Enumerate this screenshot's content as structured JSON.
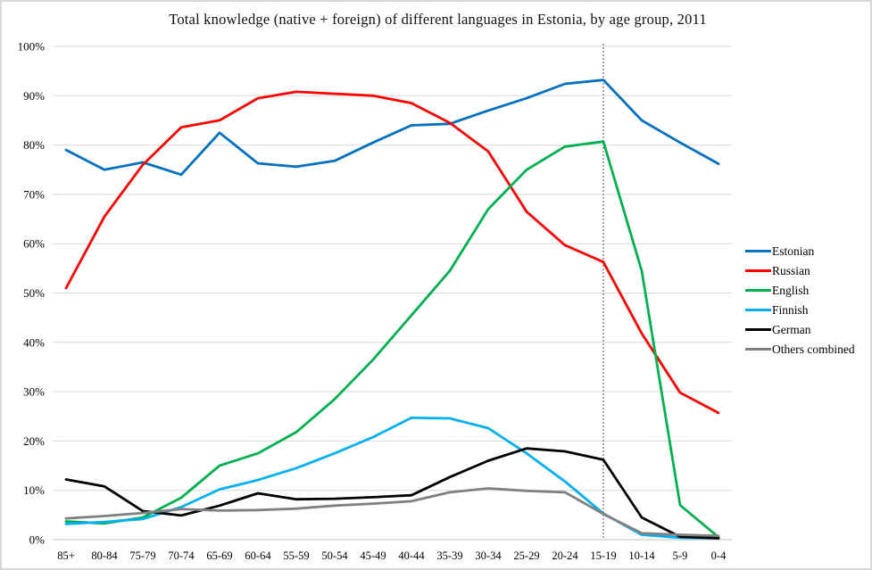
{
  "chart_data": {
    "type": "line",
    "title": "Total knowledge (native + foreign) of different languages in Estonia, by age group, 2011",
    "categories": [
      "85+",
      "80-84",
      "75-79",
      "70-74",
      "65-69",
      "60-64",
      "55-59",
      "50-54",
      "45-49",
      "40-44",
      "35-39",
      "30-34",
      "25-29",
      "20-24",
      "15-19",
      "10-14",
      "5-9",
      "0-4"
    ],
    "y_ticks": [
      "100%",
      "90%",
      "80%",
      "70%",
      "60%",
      "50%",
      "40%",
      "30%",
      "20%",
      "10%",
      "0%"
    ],
    "ylim": [
      0,
      100
    ],
    "grid": true,
    "legend_position": "right",
    "reference_line": {
      "category": "15-19",
      "style": "dashed",
      "color": "#4d4d4d"
    },
    "colors": {
      "estonian": "#0070C0",
      "russian": "#FF0000",
      "english": "#00B050",
      "finnish": "#00B0F0",
      "german": "#000000",
      "others": "#808080",
      "gridline": "#d9d9d9"
    },
    "series": [
      {
        "name": "Estonian",
        "color": "#0070C0",
        "values": [
          79,
          75,
          76.5,
          74,
          82.5,
          76.3,
          75.6,
          76.8,
          80.5,
          84,
          84.3,
          87,
          89.5,
          92.4,
          93.2,
          85,
          80.5,
          76.2
        ]
      },
      {
        "name": "Russian",
        "color": "#FF0000",
        "values": [
          51,
          65.5,
          76,
          83.6,
          85,
          89.5,
          90.8,
          90.4,
          90,
          88.5,
          84.5,
          78.7,
          66.5,
          59.7,
          56.3,
          41.8,
          29.8,
          25.7
        ]
      },
      {
        "name": "English",
        "color": "#00B050",
        "values": [
          3.7,
          3.3,
          4.5,
          8.5,
          15,
          17.5,
          21.8,
          28.5,
          36.5,
          45.5,
          54.5,
          67,
          75,
          79.7,
          80.7,
          54.5,
          7,
          0.5
        ]
      },
      {
        "name": "Finnish",
        "color": "#00B0F0",
        "values": [
          3.2,
          3.6,
          4.2,
          6.6,
          10.2,
          12.1,
          14.5,
          17.5,
          20.8,
          24.7,
          24.6,
          22.6,
          17.5,
          11.8,
          5.3,
          1,
          0.4,
          0.3
        ]
      },
      {
        "name": "German",
        "color": "#000000",
        "values": [
          12.2,
          10.8,
          5.8,
          4.9,
          6.9,
          9.4,
          8.2,
          8.3,
          8.6,
          9,
          12.7,
          16,
          18.5,
          17.9,
          16.2,
          4.5,
          0.6,
          0.3
        ]
      },
      {
        "name": "Others combined",
        "color": "#808080",
        "values": [
          4.3,
          4.8,
          5.4,
          6.2,
          5.9,
          6,
          6.3,
          6.9,
          7.3,
          7.8,
          9.6,
          10.4,
          9.9,
          9.6,
          5.2,
          1.3,
          1,
          0.8
        ]
      }
    ]
  }
}
